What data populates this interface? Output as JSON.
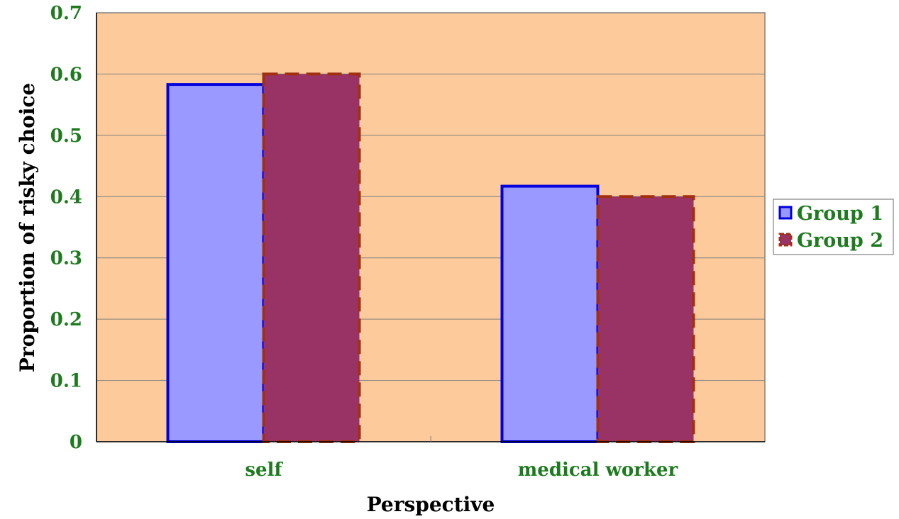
{
  "chart_data": {
    "type": "bar",
    "categories": [
      "self",
      "medical worker"
    ],
    "series": [
      {
        "name": "Group 1",
        "values": [
          0.583,
          0.417
        ],
        "fill": "#9999ff",
        "stroke": "#0000dd",
        "dashed": false
      },
      {
        "name": "Group 2",
        "values": [
          0.6,
          0.4
        ],
        "fill": "#993366",
        "stroke": "#a03010",
        "dashed": true
      }
    ],
    "xlabel": "Perspective",
    "ylabel": "Proportion of risky choice",
    "ylim": [
      0,
      0.7
    ],
    "yticks": [
      "0",
      "0.1",
      "0.2",
      "0.3",
      "0.4",
      "0.5",
      "0.6",
      "0.7"
    ],
    "grid": true,
    "legend_position": "right",
    "colors": {
      "plot_background": "#fdcb9b",
      "gridline": "#808080",
      "tick_label": "#1e7a1e",
      "axis_title": "#000000"
    }
  }
}
